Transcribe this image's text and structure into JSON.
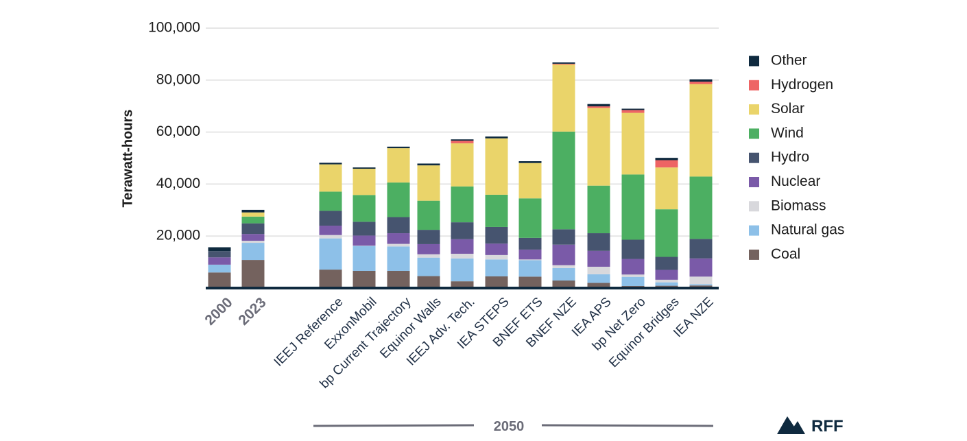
{
  "chart_data": {
    "type": "bar",
    "stacked": true,
    "title": "",
    "xlabel": "",
    "ylabel": "Terawatt-hours",
    "ylim": [
      0,
      100000
    ],
    "yticks": [
      20000,
      40000,
      60000,
      80000,
      100000
    ],
    "ytick_labels": [
      "20,000",
      "40,000",
      "60,000",
      "80,000",
      "100,000"
    ],
    "grid": true,
    "legend_position": "right",
    "categories": [
      "2000",
      "2023",
      "IEEJ Reference",
      "ExxonMobil",
      "bp Current Trajectory",
      "Equinor Walls",
      "IEEJ Adv. Tech.",
      "IEA STEPS",
      "BNEF ETS",
      "BNEF NZE",
      "IEA APS",
      "bp Net Zero",
      "Equinor Bridges",
      "IEA NZE"
    ],
    "historical_categories": [
      "2000",
      "2023"
    ],
    "group_label": "2050",
    "series": [
      {
        "name": "Coal",
        "color": "#74625e",
        "values": [
          6000,
          10800,
          7100,
          6600,
          6600,
          4600,
          2600,
          4500,
          4400,
          2900,
          2000,
          800,
          900,
          1000
        ]
      },
      {
        "name": "Natural gas",
        "color": "#8dc0e8",
        "values": [
          3000,
          6600,
          12000,
          9600,
          9400,
          7100,
          8800,
          6500,
          6300,
          4800,
          3300,
          3500,
          1300,
          500
        ]
      },
      {
        "name": "Biomass",
        "color": "#d8d8dc",
        "values": [
          0,
          800,
          1300,
          100,
          1000,
          1300,
          1800,
          1700,
          300,
          1100,
          2900,
          900,
          1000,
          2900
        ]
      },
      {
        "name": "Nuclear",
        "color": "#7a5aa8",
        "values": [
          2800,
          2600,
          3600,
          3900,
          4100,
          3900,
          5600,
          4400,
          3800,
          7900,
          6100,
          6000,
          3800,
          7000
        ]
      },
      {
        "name": "Hydro",
        "color": "#46546f",
        "values": [
          2400,
          4100,
          5700,
          5300,
          6200,
          5500,
          6500,
          6400,
          4500,
          5900,
          6800,
          7400,
          5000,
          7500
        ]
      },
      {
        "name": "Wind",
        "color": "#4caf62",
        "values": [
          0,
          2600,
          7400,
          10300,
          13300,
          11200,
          13800,
          12400,
          15200,
          37600,
          18300,
          25100,
          18300,
          24000
        ]
      },
      {
        "name": "Solar",
        "color": "#ead46a",
        "values": [
          0,
          1600,
          10500,
          10100,
          13200,
          13600,
          16600,
          21700,
          13600,
          25800,
          29900,
          23700,
          16100,
          35600
        ]
      },
      {
        "name": "Hydrogen",
        "color": "#ee6464",
        "values": [
          0,
          0,
          0,
          0,
          0,
          0,
          1000,
          0,
          0,
          300,
          600,
          1100,
          2800,
          900
        ]
      },
      {
        "name": "Other",
        "color": "#0f2a3f",
        "values": [
          1500,
          1000,
          600,
          500,
          600,
          700,
          500,
          700,
          700,
          500,
          900,
          500,
          900,
          900
        ]
      }
    ],
    "legend": [
      "Other",
      "Hydrogen",
      "Solar",
      "Wind",
      "Hydro",
      "Nuclear",
      "Biomass",
      "Natural gas",
      "Coal"
    ]
  },
  "branding": {
    "logo_text": "RFF",
    "logo_icon": "mountain-icon",
    "color": "#0f2a3f"
  },
  "colors": {
    "axis": "#0f2a3f",
    "grid": "#e6e6e6",
    "group_rule": "#6b6c78"
  }
}
